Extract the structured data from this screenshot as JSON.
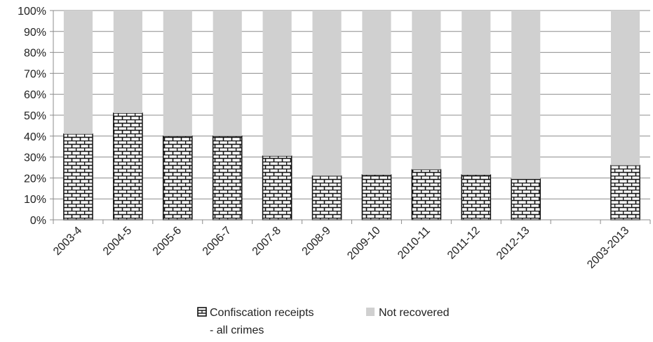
{
  "chart_data": {
    "type": "bar",
    "stacked": true,
    "percent_axis": true,
    "categories": [
      "2003-4",
      "2004-5",
      "2005-6",
      "2006-7",
      "2007-8",
      "2008-9",
      "2009-10",
      "2010-11",
      "2011-12",
      "2012-13",
      "",
      "2003-2013"
    ],
    "series": [
      {
        "name": "Confiscation receipts - all crimes",
        "name_lines": [
          "Confiscation receipts",
          "- all crimes"
        ],
        "pattern": "brick",
        "values": [
          41,
          51,
          40,
          40,
          30.5,
          21,
          21.5,
          24,
          21.5,
          19.5,
          null,
          26
        ]
      },
      {
        "name": "Not recovered",
        "color": "#d0d0d0",
        "values": [
          59,
          49,
          60,
          60,
          69.5,
          79,
          78.5,
          76,
          78.5,
          80.5,
          null,
          74
        ]
      }
    ],
    "ylim": [
      0,
      100
    ],
    "yticks": [
      "0%",
      "10%",
      "20%",
      "30%",
      "40%",
      "50%",
      "60%",
      "70%",
      "80%",
      "90%",
      "100%"
    ],
    "grid": true,
    "legend_position": "bottom"
  }
}
